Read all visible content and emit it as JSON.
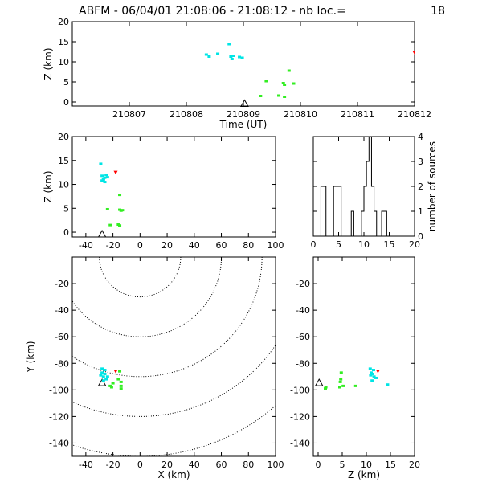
{
  "title": "ABFM - 06/04/01 21:08:06 - 21:08:12 - nb loc.=",
  "count": "18",
  "colors": {
    "cyan": "#00e5e5",
    "green": "#33ee22",
    "red": "#ff0000",
    "axis": "#000000"
  },
  "chart_data": [
    {
      "id": "time-height",
      "type": "scatter",
      "xlabel": "Time (UT)",
      "ylabel": "Z (km)",
      "xlim": [
        210806,
        210812
      ],
      "ylim": [
        -1,
        20
      ],
      "xticks": [
        "210807",
        "210808",
        "210809",
        "210810",
        "210811",
        "210812"
      ],
      "yticks": [
        "0",
        "5",
        "10",
        "15",
        "20"
      ],
      "station": {
        "x": 210809.02,
        "y": -0.5
      },
      "points": [
        {
          "x": 210808.35,
          "y": 11.8,
          "c": "cyan"
        },
        {
          "x": 210808.4,
          "y": 11.3,
          "c": "cyan"
        },
        {
          "x": 210808.55,
          "y": 12.0,
          "c": "cyan"
        },
        {
          "x": 210808.75,
          "y": 14.4,
          "c": "cyan"
        },
        {
          "x": 210808.78,
          "y": 11.3,
          "c": "cyan"
        },
        {
          "x": 210808.8,
          "y": 10.7,
          "c": "cyan"
        },
        {
          "x": 210808.83,
          "y": 11.5,
          "c": "cyan"
        },
        {
          "x": 210808.93,
          "y": 11.2,
          "c": "cyan"
        },
        {
          "x": 210808.98,
          "y": 11.0,
          "c": "cyan"
        },
        {
          "x": 210809.4,
          "y": 5.2,
          "c": "green"
        },
        {
          "x": 210809.3,
          "y": 1.5,
          "c": "green"
        },
        {
          "x": 210809.62,
          "y": 1.6,
          "c": "green"
        },
        {
          "x": 210809.7,
          "y": 4.7,
          "c": "green"
        },
        {
          "x": 210809.72,
          "y": 4.3,
          "c": "green"
        },
        {
          "x": 210809.8,
          "y": 7.8,
          "c": "green"
        },
        {
          "x": 210809.88,
          "y": 4.6,
          "c": "green"
        },
        {
          "x": 210809.72,
          "y": 1.3,
          "c": "green"
        },
        {
          "x": 210812.0,
          "y": 12.3,
          "c": "red"
        }
      ]
    },
    {
      "id": "xz-projection",
      "type": "scatter",
      "xlabel": "",
      "ylabel": "Z (km)",
      "xlim": [
        -50,
        100
      ],
      "ylim": [
        -1,
        20
      ],
      "xticks": [
        "-40",
        "-20",
        "0",
        "20",
        "40",
        "60",
        "80",
        "100"
      ],
      "yticks": [
        "0",
        "5",
        "10",
        "15",
        "20"
      ],
      "station": {
        "x": -28,
        "y": -0.5
      },
      "points": [
        {
          "x": -29,
          "y": 14.3,
          "c": "cyan"
        },
        {
          "x": -28,
          "y": 11.8,
          "c": "cyan"
        },
        {
          "x": -27,
          "y": 11.0,
          "c": "cyan"
        },
        {
          "x": -28,
          "y": 10.8,
          "c": "cyan"
        },
        {
          "x": -26,
          "y": 11.4,
          "c": "cyan"
        },
        {
          "x": -25,
          "y": 12.0,
          "c": "cyan"
        },
        {
          "x": -24,
          "y": 11.5,
          "c": "cyan"
        },
        {
          "x": -26,
          "y": 10.5,
          "c": "cyan"
        },
        {
          "x": -27,
          "y": 11.2,
          "c": "cyan"
        },
        {
          "x": -18,
          "y": 12.5,
          "c": "red"
        },
        {
          "x": -15,
          "y": 7.8,
          "c": "green"
        },
        {
          "x": -24,
          "y": 4.8,
          "c": "green"
        },
        {
          "x": -15,
          "y": 4.7,
          "c": "green"
        },
        {
          "x": -14,
          "y": 4.5,
          "c": "green"
        },
        {
          "x": -13,
          "y": 4.6,
          "c": "green"
        },
        {
          "x": -22,
          "y": 1.5,
          "c": "green"
        },
        {
          "x": -15,
          "y": 1.4,
          "c": "green"
        },
        {
          "x": -16,
          "y": 1.6,
          "c": "green"
        }
      ]
    },
    {
      "id": "height-histogram",
      "type": "bar",
      "xlabel": "",
      "ylabel": "number of sources",
      "xlim": [
        0,
        20
      ],
      "ylim": [
        0,
        4
      ],
      "xticks": [
        "0",
        "5",
        "10",
        "15",
        "20"
      ],
      "yticks": [
        "0",
        "1",
        "2",
        "3",
        "4"
      ],
      "bins": [
        {
          "from": 0,
          "to": 1.5,
          "v": 0
        },
        {
          "from": 1.5,
          "to": 2.5,
          "v": 2
        },
        {
          "from": 2.5,
          "to": 4,
          "v": 0
        },
        {
          "from": 4,
          "to": 5.5,
          "v": 2
        },
        {
          "from": 5.5,
          "to": 7.5,
          "v": 0
        },
        {
          "from": 7.5,
          "to": 8,
          "v": 1
        },
        {
          "from": 8,
          "to": 9.5,
          "v": 0
        },
        {
          "from": 9.5,
          "to": 10,
          "v": 1
        },
        {
          "from": 10,
          "to": 10.5,
          "v": 2
        },
        {
          "from": 10.5,
          "to": 11,
          "v": 3
        },
        {
          "from": 11,
          "to": 11.5,
          "v": 4
        },
        {
          "from": 11.5,
          "to": 12,
          "v": 2
        },
        {
          "from": 12,
          "to": 12.5,
          "v": 1
        },
        {
          "from": 12.5,
          "to": 13.5,
          "v": 0
        },
        {
          "from": 13.5,
          "to": 14.5,
          "v": 1
        },
        {
          "from": 14.5,
          "to": 20,
          "v": 0
        }
      ]
    },
    {
      "id": "plan-view",
      "type": "scatter",
      "xlabel": "X (km)",
      "ylabel": "Y (km)",
      "xlim": [
        -50,
        100
      ],
      "ylim": [
        -150,
        0
      ],
      "xticks": [
        "-40",
        "-20",
        "0",
        "20",
        "40",
        "60",
        "80",
        "100"
      ],
      "yticks": [
        "-20",
        "-40",
        "-60",
        "-80",
        "-100",
        "-120",
        "-140"
      ],
      "range_rings_center": {
        "x": 0,
        "y": 0
      },
      "range_rings_km": [
        30,
        60,
        90,
        120,
        150
      ],
      "station": {
        "x": -28,
        "y": -95
      },
      "points": [
        {
          "x": -28,
          "y": -84,
          "c": "cyan"
        },
        {
          "x": -26,
          "y": -85,
          "c": "cyan"
        },
        {
          "x": -28,
          "y": -87,
          "c": "cyan"
        },
        {
          "x": -26,
          "y": -88,
          "c": "cyan"
        },
        {
          "x": -29,
          "y": -89,
          "c": "cyan"
        },
        {
          "x": -27,
          "y": -90,
          "c": "cyan"
        },
        {
          "x": -24,
          "y": -90,
          "c": "cyan"
        },
        {
          "x": -25,
          "y": -92,
          "c": "cyan"
        },
        {
          "x": -27,
          "y": -93,
          "c": "cyan"
        },
        {
          "x": -18,
          "y": -86,
          "c": "red"
        },
        {
          "x": -15,
          "y": -86,
          "c": "green"
        },
        {
          "x": -16,
          "y": -92,
          "c": "green"
        },
        {
          "x": -14,
          "y": -94,
          "c": "green"
        },
        {
          "x": -14,
          "y": -97,
          "c": "green"
        },
        {
          "x": -14,
          "y": -99,
          "c": "green"
        },
        {
          "x": -20,
          "y": -95,
          "c": "green"
        },
        {
          "x": -21,
          "y": -98,
          "c": "green"
        },
        {
          "x": -22,
          "y": -97,
          "c": "green"
        }
      ]
    },
    {
      "id": "zy-projection",
      "type": "scatter",
      "xlabel": "Z (km)",
      "ylabel": "",
      "xlim": [
        -1,
        20
      ],
      "ylim": [
        -150,
        0
      ],
      "xticks": [
        "0",
        "5",
        "10",
        "15",
        "20"
      ],
      "yticks": [
        "-20",
        "-40",
        "-60",
        "-80",
        "-100",
        "-120",
        "-140"
      ],
      "station": {
        "x": 0.2,
        "y": -95
      },
      "points": [
        {
          "x": 10.8,
          "y": -84,
          "c": "cyan"
        },
        {
          "x": 11.5,
          "y": -85,
          "c": "cyan"
        },
        {
          "x": 11.0,
          "y": -87,
          "c": "cyan"
        },
        {
          "x": 11.3,
          "y": -88,
          "c": "cyan"
        },
        {
          "x": 10.9,
          "y": -89,
          "c": "cyan"
        },
        {
          "x": 11.6,
          "y": -90,
          "c": "cyan"
        },
        {
          "x": 12.0,
          "y": -91,
          "c": "cyan"
        },
        {
          "x": 11.2,
          "y": -93,
          "c": "cyan"
        },
        {
          "x": 14.4,
          "y": -96,
          "c": "cyan"
        },
        {
          "x": 12.4,
          "y": -86,
          "c": "red"
        },
        {
          "x": 4.8,
          "y": -87,
          "c": "green"
        },
        {
          "x": 4.7,
          "y": -92,
          "c": "green"
        },
        {
          "x": 4.6,
          "y": -94,
          "c": "green"
        },
        {
          "x": 7.8,
          "y": -97,
          "c": "green"
        },
        {
          "x": 5.2,
          "y": -97,
          "c": "green"
        },
        {
          "x": 1.5,
          "y": -99,
          "c": "green"
        },
        {
          "x": 1.6,
          "y": -98,
          "c": "green"
        },
        {
          "x": 4.5,
          "y": -98,
          "c": "green"
        }
      ]
    }
  ]
}
